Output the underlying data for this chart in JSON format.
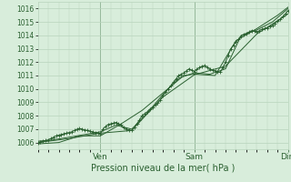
{
  "title": "",
  "xlabel": "Pression niveau de la mer( hPa )",
  "ylim": [
    1005.5,
    1016.5
  ],
  "xlim": [
    0,
    96
  ],
  "yticks": [
    1006,
    1007,
    1008,
    1009,
    1010,
    1011,
    1012,
    1013,
    1014,
    1015,
    1016
  ],
  "xtick_positions": [
    24,
    60,
    96
  ],
  "xtick_labels": [
    "Ven",
    "Sam",
    "Dim"
  ],
  "bg_color": "#d8eddb",
  "grid_color": "#b8d4bc",
  "line_color": "#2a6030",
  "vline_color": "#2a6030",
  "series1": [
    [
      0,
      1006.0
    ],
    [
      1,
      1006.05
    ],
    [
      2,
      1006.1
    ],
    [
      3,
      1006.15
    ],
    [
      4,
      1006.2
    ],
    [
      5,
      1006.3
    ],
    [
      6,
      1006.4
    ],
    [
      7,
      1006.5
    ],
    [
      8,
      1006.55
    ],
    [
      9,
      1006.6
    ],
    [
      10,
      1006.65
    ],
    [
      11,
      1006.7
    ],
    [
      12,
      1006.75
    ],
    [
      13,
      1006.8
    ],
    [
      14,
      1006.9
    ],
    [
      15,
      1007.0
    ],
    [
      16,
      1007.05
    ],
    [
      17,
      1007.0
    ],
    [
      18,
      1006.95
    ],
    [
      19,
      1006.9
    ],
    [
      20,
      1006.85
    ],
    [
      21,
      1006.8
    ],
    [
      22,
      1006.75
    ],
    [
      23,
      1006.7
    ],
    [
      24,
      1006.65
    ],
    [
      25,
      1007.0
    ],
    [
      26,
      1007.2
    ],
    [
      27,
      1007.35
    ],
    [
      28,
      1007.4
    ],
    [
      29,
      1007.45
    ],
    [
      30,
      1007.5
    ],
    [
      31,
      1007.4
    ],
    [
      32,
      1007.3
    ],
    [
      33,
      1007.1
    ],
    [
      34,
      1007.0
    ],
    [
      35,
      1006.95
    ],
    [
      36,
      1006.9
    ],
    [
      37,
      1007.1
    ],
    [
      38,
      1007.4
    ],
    [
      39,
      1007.7
    ],
    [
      40,
      1008.0
    ],
    [
      41,
      1008.15
    ],
    [
      42,
      1008.3
    ],
    [
      43,
      1008.5
    ],
    [
      44,
      1008.65
    ],
    [
      45,
      1008.8
    ],
    [
      46,
      1008.95
    ],
    [
      47,
      1009.2
    ],
    [
      48,
      1009.5
    ],
    [
      49,
      1009.75
    ],
    [
      50,
      1010.0
    ],
    [
      51,
      1010.25
    ],
    [
      52,
      1010.5
    ],
    [
      53,
      1010.75
    ],
    [
      54,
      1011.0
    ],
    [
      55,
      1011.1
    ],
    [
      56,
      1011.2
    ],
    [
      57,
      1011.35
    ],
    [
      58,
      1011.5
    ],
    [
      59,
      1011.4
    ],
    [
      60,
      1011.3
    ],
    [
      61,
      1011.45
    ],
    [
      62,
      1011.6
    ],
    [
      63,
      1011.7
    ],
    [
      64,
      1011.75
    ],
    [
      65,
      1011.6
    ],
    [
      66,
      1011.5
    ],
    [
      67,
      1011.4
    ],
    [
      68,
      1011.35
    ],
    [
      69,
      1011.3
    ],
    [
      70,
      1011.25
    ],
    [
      71,
      1011.6
    ],
    [
      72,
      1012.0
    ],
    [
      73,
      1012.5
    ],
    [
      74,
      1013.0
    ],
    [
      75,
      1013.25
    ],
    [
      76,
      1013.5
    ],
    [
      77,
      1013.7
    ],
    [
      78,
      1013.95
    ],
    [
      79,
      1014.05
    ],
    [
      80,
      1014.15
    ],
    [
      81,
      1014.25
    ],
    [
      82,
      1014.35
    ],
    [
      83,
      1014.3
    ],
    [
      84,
      1014.25
    ],
    [
      85,
      1014.35
    ],
    [
      86,
      1014.45
    ],
    [
      87,
      1014.5
    ],
    [
      88,
      1014.55
    ],
    [
      89,
      1014.65
    ],
    [
      90,
      1014.75
    ],
    [
      91,
      1014.9
    ],
    [
      92,
      1015.05
    ],
    [
      93,
      1015.2
    ],
    [
      94,
      1015.4
    ],
    [
      95,
      1015.6
    ],
    [
      96,
      1015.85
    ]
  ],
  "series2": [
    [
      0,
      1006.1
    ],
    [
      6,
      1006.2
    ],
    [
      12,
      1006.4
    ],
    [
      18,
      1006.6
    ],
    [
      24,
      1006.8
    ],
    [
      30,
      1007.3
    ],
    [
      36,
      1007.0
    ],
    [
      42,
      1008.2
    ],
    [
      48,
      1009.6
    ],
    [
      54,
      1010.8
    ],
    [
      60,
      1011.2
    ],
    [
      66,
      1011.1
    ],
    [
      72,
      1011.5
    ],
    [
      78,
      1014.0
    ],
    [
      84,
      1014.4
    ],
    [
      90,
      1015.0
    ],
    [
      96,
      1016.0
    ]
  ],
  "series3": [
    [
      0,
      1005.9
    ],
    [
      8,
      1006.0
    ],
    [
      16,
      1006.5
    ],
    [
      24,
      1006.5
    ],
    [
      32,
      1007.4
    ],
    [
      40,
      1008.4
    ],
    [
      48,
      1009.7
    ],
    [
      56,
      1011.0
    ],
    [
      60,
      1011.1
    ],
    [
      68,
      1011.0
    ],
    [
      76,
      1013.6
    ],
    [
      84,
      1014.5
    ],
    [
      92,
      1015.5
    ],
    [
      96,
      1016.1
    ]
  ],
  "series4": [
    [
      0,
      1006.0
    ],
    [
      12,
      1006.3
    ],
    [
      24,
      1006.7
    ],
    [
      36,
      1006.9
    ],
    [
      48,
      1009.4
    ],
    [
      60,
      1011.05
    ],
    [
      72,
      1011.7
    ],
    [
      84,
      1014.1
    ],
    [
      96,
      1015.6
    ]
  ]
}
